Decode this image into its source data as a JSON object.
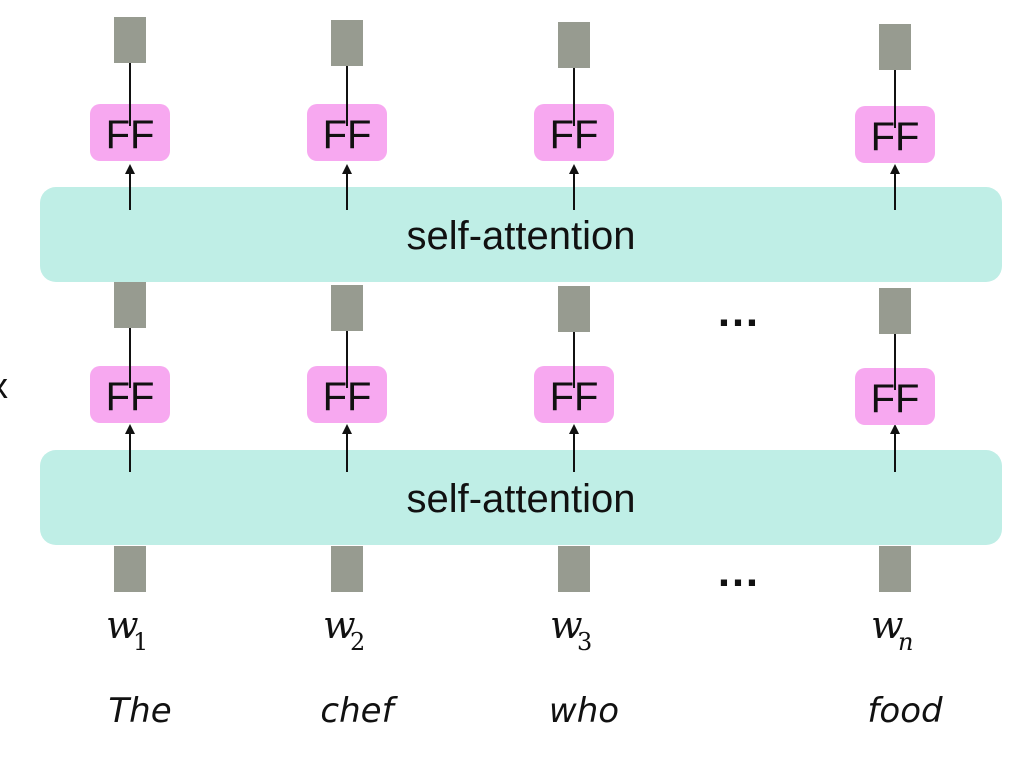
{
  "colors": {
    "ff_fill": "#f7a8f0",
    "attention_fill": "#bfeee6",
    "vector_fill": "#979b90",
    "arrow": "#111111",
    "text": "#111111"
  },
  "layers": [
    {
      "attention_label": "self-attention",
      "ff_label": "FF"
    },
    {
      "attention_label": "self-attention",
      "ff_label": "FF"
    }
  ],
  "columns": [
    {
      "var": "w",
      "sub": "1",
      "word": "The"
    },
    {
      "var": "w",
      "sub": "2",
      "word": "chef"
    },
    {
      "var": "w",
      "sub": "3",
      "word": "who"
    },
    {
      "var": "w",
      "sub": "n",
      "word": "food"
    }
  ],
  "ellipsis": "…",
  "left_edge_text": "x"
}
